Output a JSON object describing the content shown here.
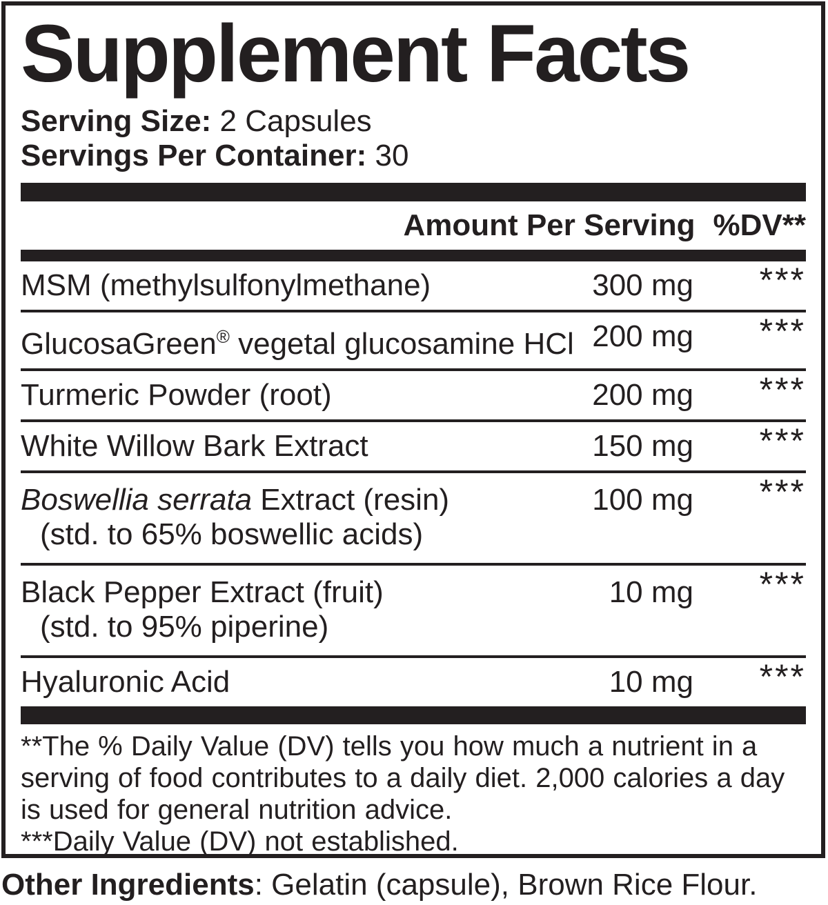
{
  "title": "Supplement Facts",
  "serving": {
    "size_label": "Serving Size:",
    "size_value": " 2 Capsules",
    "per_container_label": "Servings Per Container:",
    "per_container_value": " 30"
  },
  "table": {
    "amount_header": "Amount Per Serving",
    "dv_header": "%DV**",
    "rows": [
      {
        "name": [
          {
            "t": "MSM (methylsulfonylmethane)"
          }
        ],
        "amount": "300 mg",
        "dv": "***"
      },
      {
        "name": [
          {
            "t": "GlucosaGreen"
          },
          {
            "t": "®",
            "sup": true
          },
          {
            "t": " vegetal glucosamine HCl"
          }
        ],
        "amount": "200 mg",
        "dv": "***"
      },
      {
        "name": [
          {
            "t": "Turmeric Powder (root)"
          }
        ],
        "amount": "200 mg",
        "dv": "***"
      },
      {
        "name": [
          {
            "t": "White Willow Bark Extract"
          }
        ],
        "amount": "150 mg",
        "dv": "***"
      },
      {
        "name": [
          {
            "t": "Boswellia serrata",
            "italic": true
          },
          {
            "t": " Extract (resin)"
          }
        ],
        "sub": "(std. to 65% boswellic acids)",
        "amount": "100 mg",
        "dv": "***"
      },
      {
        "name": [
          {
            "t": "Black Pepper Extract (fruit)"
          }
        ],
        "sub": "(std. to 95% piperine)",
        "amount": "10 mg",
        "dv": "***"
      },
      {
        "name": [
          {
            "t": "Hyaluronic Acid"
          }
        ],
        "amount": "10 mg",
        "dv": "***"
      }
    ]
  },
  "footnotes": {
    "lines": [
      "**The % Daily Value (DV) tells you how much a nutrient in a",
      "serving of food contributes to a daily diet. 2,000 calories a day",
      "is used for general nutrition advice.",
      "***Daily Value (DV) not established."
    ]
  },
  "other_ingredients": {
    "label": "Other Ingredients",
    "value": ": Gelatin (capsule), Brown Rice Flour."
  },
  "colors": {
    "ink": "#231f20",
    "background": "#ffffff"
  }
}
